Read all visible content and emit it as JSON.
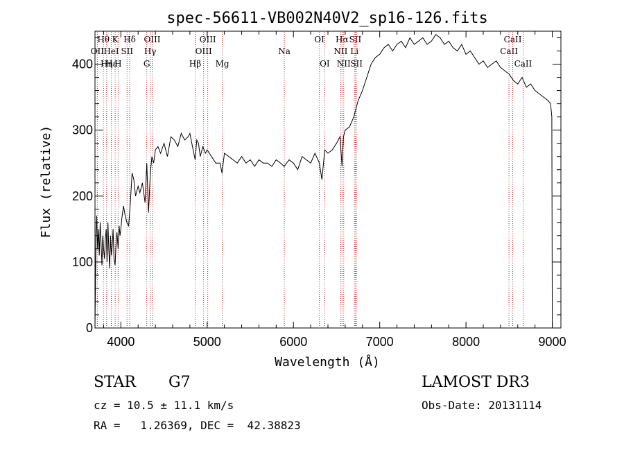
{
  "chart_data": {
    "type": "line",
    "title": "spec-56611-VB002N40V2_sp16-126.fits",
    "xlabel": "Wavelength (Å)",
    "ylabel": "Flux (relative)",
    "xlim": [
      3700,
      9100
    ],
    "ylim": [
      0,
      450
    ],
    "xticks": [
      4000,
      5000,
      6000,
      7000,
      8000,
      9000
    ],
    "yticks": [
      0,
      100,
      200,
      300,
      400
    ],
    "series": [
      {
        "name": "spectrum",
        "x": [
          3700,
          3705,
          3712,
          3720,
          3730,
          3740,
          3750,
          3760,
          3770,
          3780,
          3790,
          3800,
          3810,
          3820,
          3830,
          3840,
          3850,
          3860,
          3870,
          3880,
          3890,
          3900,
          3910,
          3920,
          3933,
          3945,
          3955,
          3968,
          3980,
          3990,
          4000,
          4010,
          4030,
          4050,
          4070,
          4090,
          4102,
          4110,
          4130,
          4150,
          4170,
          4200,
          4220,
          4250,
          4280,
          4300,
          4320,
          4340,
          4345,
          4360,
          4380,
          4400,
          4430,
          4460,
          4500,
          4540,
          4580,
          4620,
          4660,
          4700,
          4740,
          4780,
          4800,
          4830,
          4861,
          4880,
          4900,
          4920,
          4950,
          4980,
          5000,
          5050,
          5100,
          5150,
          5172,
          5200,
          5250,
          5300,
          5350,
          5400,
          5450,
          5500,
          5550,
          5600,
          5650,
          5700,
          5750,
          5800,
          5850,
          5893,
          5950,
          6000,
          6050,
          6100,
          6150,
          6200,
          6250,
          6300,
          6330,
          6363,
          6400,
          6450,
          6500,
          6540,
          6563,
          6580,
          6600,
          6650,
          6700,
          6750,
          6800,
          6850,
          6900,
          6950,
          7000,
          7050,
          7100,
          7150,
          7200,
          7250,
          7300,
          7350,
          7400,
          7450,
          7500,
          7550,
          7600,
          7650,
          7700,
          7750,
          7800,
          7850,
          7900,
          7950,
          8000,
          8050,
          8100,
          8150,
          8200,
          8250,
          8300,
          8350,
          8400,
          8450,
          8500,
          8550,
          8600,
          8650,
          8700,
          8750,
          8800,
          8850,
          8900,
          8950,
          8980,
          8995,
          9000
        ],
        "values": [
          0,
          60,
          140,
          170,
          120,
          150,
          110,
          160,
          130,
          95,
          140,
          120,
          105,
          135,
          150,
          100,
          160,
          120,
          90,
          140,
          110,
          125,
          150,
          105,
          95,
          130,
          145,
          120,
          155,
          140,
          150,
          165,
          185,
          170,
          160,
          155,
          175,
          190,
          235,
          225,
          200,
          215,
          205,
          220,
          190,
          250,
          175,
          230,
          240,
          260,
          250,
          270,
          275,
          265,
          280,
          260,
          290,
          285,
          275,
          295,
          285,
          290,
          295,
          275,
          255,
          285,
          280,
          260,
          275,
          265,
          270,
          260,
          250,
          250,
          235,
          265,
          260,
          255,
          250,
          260,
          250,
          255,
          245,
          255,
          250,
          250,
          245,
          255,
          250,
          245,
          255,
          250,
          240,
          260,
          255,
          250,
          265,
          250,
          225,
          270,
          265,
          270,
          280,
          290,
          245,
          290,
          300,
          305,
          320,
          345,
          360,
          380,
          400,
          410,
          415,
          425,
          430,
          420,
          430,
          435,
          425,
          440,
          430,
          435,
          440,
          430,
          435,
          445,
          440,
          430,
          435,
          425,
          420,
          430,
          415,
          420,
          410,
          400,
          405,
          395,
          400,
          405,
          395,
          390,
          385,
          375,
          370,
          380,
          365,
          370,
          360,
          355,
          350,
          345,
          340,
          320,
          0
        ]
      }
    ],
    "markers": [
      {
        "label": "OII",
        "x": 3727,
        "row": 2
      },
      {
        "label": "Hθ",
        "x": 3798,
        "row": 1
      },
      {
        "label": "Hη",
        "x": 3835,
        "row": 3
      },
      {
        "label": "HeI",
        "x": 3889,
        "row": 2
      },
      {
        "label": "Hε",
        "x": 3889,
        "row": 3
      },
      {
        "label": "K",
        "x": 3934,
        "row": 1
      },
      {
        "label": "H",
        "x": 3968,
        "row": 3
      },
      {
        "label": "SII",
        "x": 4072,
        "row": 2
      },
      {
        "label": "Hδ",
        "x": 4102,
        "row": 1
      },
      {
        "label": "G",
        "x": 4300,
        "row": 3
      },
      {
        "label": "Hγ",
        "x": 4340,
        "row": 2
      },
      {
        "label": "OIII",
        "x": 4363,
        "row": 1
      },
      {
        "label": "Hβ",
        "x": 4861,
        "row": 3
      },
      {
        "label": "OIII",
        "x": 4959,
        "row": 2
      },
      {
        "label": "OIII",
        "x": 5007,
        "row": 1
      },
      {
        "label": "Mg",
        "x": 5175,
        "row": 3
      },
      {
        "label": "Na",
        "x": 5894,
        "row": 2
      },
      {
        "label": "OI",
        "x": 6300,
        "row": 1
      },
      {
        "label": "OI",
        "x": 6363,
        "row": 3
      },
      {
        "label": "NII",
        "x": 6548,
        "row": 2
      },
      {
        "label": "Hα",
        "x": 6563,
        "row": 1
      },
      {
        "label": "NII",
        "x": 6583,
        "row": 3
      },
      {
        "label": "Li",
        "x": 6707,
        "row": 2
      },
      {
        "label": "SII",
        "x": 6717,
        "row": 1
      },
      {
        "label": "SII",
        "x": 6731,
        "row": 3
      },
      {
        "label": "CaII",
        "x": 8498,
        "row": 2
      },
      {
        "label": "CaII",
        "x": 8542,
        "row": 1
      },
      {
        "label": "CaII",
        "x": 8662,
        "row": 3
      }
    ]
  },
  "info": {
    "object_class": "STAR",
    "subclass": "G7",
    "survey": "LAMOST DR3",
    "redshift": "cz = 10.5 ± 11.1 km/s",
    "obs_date": "Obs-Date: 20131114",
    "coords": "RA =   1.26369, DEC =  42.38823"
  }
}
